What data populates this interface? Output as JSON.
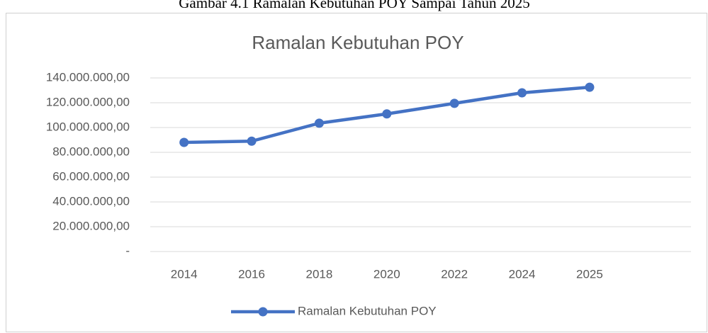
{
  "chart_data": {
    "type": "line",
    "caption": "Gambar 4.1 Ramalan Kebutuhan POY Sampai Tahun 2025",
    "title": "Ramalan Kebutuhan POY",
    "categories": [
      "2014",
      "2016",
      "2018",
      "2020",
      "2022",
      "2024",
      "2025",
      null
    ],
    "series": [
      {
        "name": "Ramalan Kebutuhan POY",
        "color": "#4472c4",
        "values": [
          88000000,
          89000000,
          103500000,
          111000000,
          119500000,
          128000000,
          132500000,
          null
        ]
      }
    ],
    "ylim": [
      0,
      140000000
    ],
    "yticks": [
      {
        "value": 0,
        "label": "-"
      },
      {
        "value": 20000000,
        "label": "20.000.000,00"
      },
      {
        "value": 40000000,
        "label": "40.000.000,00"
      },
      {
        "value": 60000000,
        "label": "60.000.000,00"
      },
      {
        "value": 80000000,
        "label": "80.000.000,00"
      },
      {
        "value": 100000000,
        "label": "100.000.000,00"
      },
      {
        "value": 120000000,
        "label": "120.000.000,00"
      },
      {
        "value": 140000000,
        "label": "140.000.000,00"
      }
    ],
    "grid": true,
    "legend": "bottom"
  }
}
